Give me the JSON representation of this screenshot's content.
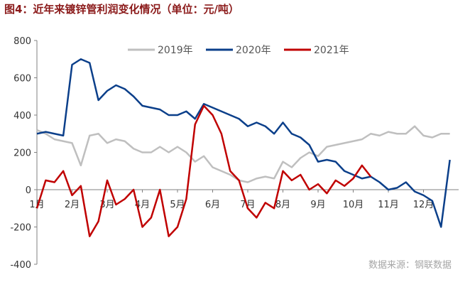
{
  "chart_data": {
    "type": "line",
    "title": "图4：近年来镀锌管利润变化情况（单位：元/吨）",
    "source": "数据来源：钢联数据",
    "x": [
      1,
      1.25,
      1.5,
      1.75,
      2,
      2.25,
      2.5,
      2.75,
      3,
      3.25,
      3.5,
      3.75,
      4,
      4.25,
      4.5,
      4.75,
      5,
      5.25,
      5.5,
      5.75,
      6,
      6.25,
      6.5,
      6.75,
      7,
      7.25,
      7.5,
      7.75,
      8,
      8.25,
      8.5,
      8.75,
      9,
      9.25,
      9.5,
      9.75,
      10,
      10.25,
      10.5,
      10.75,
      11,
      11.25,
      11.5,
      11.75,
      12,
      12.25,
      12.5,
      12.75
    ],
    "series": [
      {
        "name": "2019年",
        "color": "#bfbfbf",
        "values": [
          320,
          300,
          270,
          260,
          250,
          130,
          290,
          300,
          250,
          270,
          260,
          220,
          200,
          200,
          230,
          200,
          230,
          200,
          150,
          180,
          120,
          100,
          80,
          50,
          40,
          60,
          70,
          60,
          150,
          120,
          170,
          200,
          180,
          230,
          240,
          250,
          260,
          270,
          300,
          290,
          310,
          300,
          300,
          340,
          290,
          280,
          300,
          300
        ]
      },
      {
        "name": "2020年",
        "color": "#0b3f8a",
        "values": [
          300,
          310,
          300,
          290,
          670,
          700,
          680,
          480,
          530,
          560,
          540,
          500,
          450,
          440,
          430,
          400,
          400,
          420,
          380,
          460,
          440,
          420,
          400,
          380,
          340,
          360,
          340,
          300,
          360,
          300,
          280,
          240,
          150,
          160,
          150,
          100,
          80,
          60,
          70,
          40,
          0,
          10,
          40,
          -10,
          -30,
          -60,
          -200,
          160
        ]
      },
      {
        "name": "2021年",
        "color": "#c00000",
        "values": [
          -100,
          50,
          40,
          100,
          -30,
          20,
          -250,
          -170,
          50,
          -80,
          -50,
          0,
          -200,
          -150,
          0,
          -250,
          -200,
          -50,
          350,
          450,
          400,
          300,
          100,
          50,
          -100,
          -150,
          -70,
          -100,
          100,
          50,
          80,
          0,
          30,
          -20,
          50,
          20,
          60,
          130,
          70,
          null,
          null,
          null,
          null,
          null,
          null,
          null,
          null,
          null
        ]
      }
    ],
    "xlim": [
      1,
      13
    ],
    "xticks": [
      {
        "value": 1,
        "label": "1月"
      },
      {
        "value": 2,
        "label": "2月"
      },
      {
        "value": 3,
        "label": "3月"
      },
      {
        "value": 4,
        "label": "4月"
      },
      {
        "value": 5,
        "label": "5月"
      },
      {
        "value": 6,
        "label": "6月"
      },
      {
        "value": 7,
        "label": "7月"
      },
      {
        "value": 8,
        "label": "8月"
      },
      {
        "value": 9,
        "label": "9月"
      },
      {
        "value": 10,
        "label": "10月"
      },
      {
        "value": 11,
        "label": "11月"
      },
      {
        "value": 12,
        "label": "12月"
      }
    ],
    "ylim": [
      -400,
      800
    ],
    "yticks": [
      -400,
      -200,
      0,
      200,
      400,
      600,
      800
    ],
    "legend": "top"
  }
}
